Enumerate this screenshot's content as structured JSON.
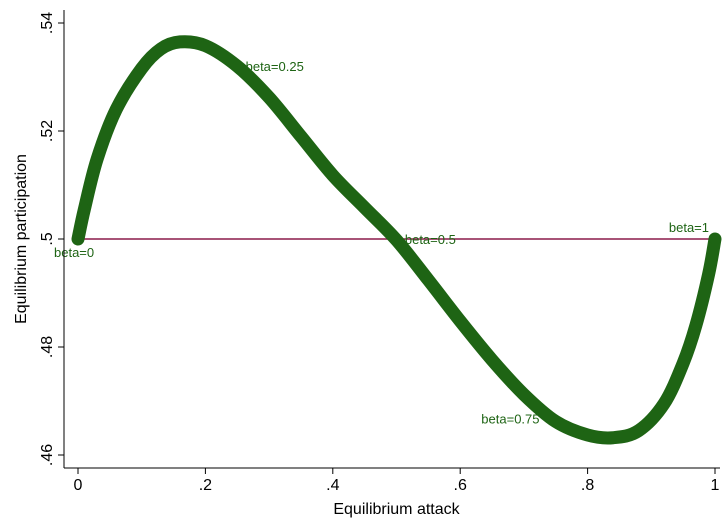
{
  "chart_data": {
    "type": "scatter",
    "xlabel": "Equilibrium attack",
    "ylabel": "Equilibrium participation",
    "xlim": [
      0,
      1
    ],
    "ylim": [
      0.46,
      0.54
    ],
    "x_ticks": [
      {
        "value": 0,
        "label": "0"
      },
      {
        "value": 0.2,
        "label": ".2"
      },
      {
        "value": 0.4,
        "label": ".4"
      },
      {
        "value": 0.6,
        "label": ".6"
      },
      {
        "value": 0.8,
        "label": ".8"
      },
      {
        "value": 1,
        "label": "1"
      }
    ],
    "y_ticks": [
      {
        "value": 0.46,
        "label": ".46"
      },
      {
        "value": 0.48,
        "label": ".48"
      },
      {
        "value": 0.5,
        "label": ".5"
      },
      {
        "value": 0.52,
        "label": ".52"
      },
      {
        "value": 0.54,
        "label": ".54"
      }
    ],
    "grid": false,
    "reference_line": {
      "y": 0.5,
      "color": "#8b1a4a"
    },
    "series": [
      {
        "color": "#1e6414",
        "points": [
          {
            "x": 0.0,
            "y": 0.5
          },
          {
            "x": 0.01,
            "y": 0.5055
          },
          {
            "x": 0.03,
            "y": 0.5148
          },
          {
            "x": 0.06,
            "y": 0.524
          },
          {
            "x": 0.1,
            "y": 0.5316
          },
          {
            "x": 0.13,
            "y": 0.5352
          },
          {
            "x": 0.16,
            "y": 0.5365
          },
          {
            "x": 0.2,
            "y": 0.5358
          },
          {
            "x": 0.25,
            "y": 0.532
          },
          {
            "x": 0.3,
            "y": 0.5262
          },
          {
            "x": 0.35,
            "y": 0.519
          },
          {
            "x": 0.4,
            "y": 0.5118
          },
          {
            "x": 0.45,
            "y": 0.5058
          },
          {
            "x": 0.5,
            "y": 0.4998
          },
          {
            "x": 0.55,
            "y": 0.4924
          },
          {
            "x": 0.6,
            "y": 0.4848
          },
          {
            "x": 0.65,
            "y": 0.4776
          },
          {
            "x": 0.7,
            "y": 0.4712
          },
          {
            "x": 0.75,
            "y": 0.4662
          },
          {
            "x": 0.8,
            "y": 0.4637
          },
          {
            "x": 0.84,
            "y": 0.4632
          },
          {
            "x": 0.88,
            "y": 0.4645
          },
          {
            "x": 0.92,
            "y": 0.4695
          },
          {
            "x": 0.95,
            "y": 0.477
          },
          {
            "x": 0.97,
            "y": 0.484
          },
          {
            "x": 0.99,
            "y": 0.4935
          },
          {
            "x": 1.0,
            "y": 0.5
          }
        ]
      }
    ],
    "annotations": [
      {
        "text": "beta=0",
        "x": 0.0,
        "y": 0.5,
        "placement": "below-right"
      },
      {
        "text": "beta=0.25",
        "x": 0.26,
        "y": 0.532,
        "placement": "right"
      },
      {
        "text": "beta=0.5",
        "x": 0.51,
        "y": 0.5,
        "placement": "right"
      },
      {
        "text": "beta=0.75",
        "x": 0.63,
        "y": 0.4668,
        "placement": "right"
      },
      {
        "text": "beta=1",
        "x": 1.0,
        "y": 0.5,
        "placement": "above-left"
      }
    ]
  }
}
